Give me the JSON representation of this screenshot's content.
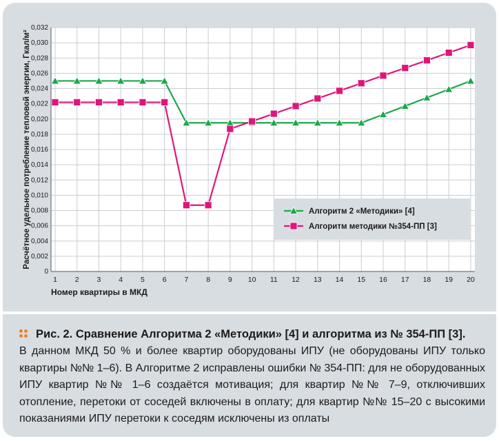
{
  "chart_data": {
    "type": "line",
    "ylabel": "Расчётное удельное потребление тепловой энергии, Гкал/м²",
    "xlabel": "Номер квартиры в МКД",
    "ylim": [
      0,
      0.032
    ],
    "y_ticks": [
      "0",
      "0,002",
      "0,004",
      "0,006",
      "0,008",
      "0,010",
      "0,012",
      "0,014",
      "0,016",
      "0,018",
      "0,020",
      "0,022",
      "0,024",
      "0,026",
      "0,028",
      "0,030",
      "0,032"
    ],
    "categories": [
      "1",
      "2",
      "3",
      "4",
      "5",
      "6",
      "7",
      "8",
      "9",
      "10",
      "11",
      "12",
      "13",
      "14",
      "15",
      "16",
      "17",
      "18",
      "19",
      "20"
    ],
    "series": [
      {
        "name": "Алгоритм 2 «Методики» [4]",
        "color": "#1aa84a",
        "marker": "triangle",
        "values": [
          0.025,
          0.025,
          0.025,
          0.025,
          0.025,
          0.025,
          0.0195,
          0.0195,
          0.0195,
          0.0195,
          0.0195,
          0.0195,
          0.0195,
          0.0195,
          0.0195,
          0.0206,
          0.0217,
          0.0228,
          0.0239,
          0.025
        ]
      },
      {
        "name": "Алгоритм методики №354-ПП [3]",
        "color": "#e0157a",
        "marker": "square",
        "values": [
          0.0222,
          0.0222,
          0.0222,
          0.0222,
          0.0222,
          0.0222,
          0.0087,
          0.0087,
          0.0187,
          0.0197,
          0.0207,
          0.0217,
          0.0227,
          0.0237,
          0.0247,
          0.0257,
          0.0267,
          0.0277,
          0.0287,
          0.0297
        ]
      }
    ],
    "legend_position": "right-middle",
    "grid": true
  },
  "caption": {
    "title": "Рис. 2. Сравнение Алгоритма 2 «Методики» [4] и алгоритма из № 354-ПП [3].",
    "text": "В данном МКД 50 % и более квартир оборудованы ИПУ (не оборудованы ИПУ только квартиры №№ 1–6). В Алгоритме 2 исправлены ошибки № 354-ПП: для не оборудованных ИПУ квартир №№ 1–6 создаётся мотивация; для квартир №№ 7–9, отключивших отопление, перетоки от соседей включены в оплату; для квартир №№ 15–20 с высокими показаниями ИПУ перетоки к соседям исключены из оплаты",
    "bullet_color": "#e8832a"
  }
}
